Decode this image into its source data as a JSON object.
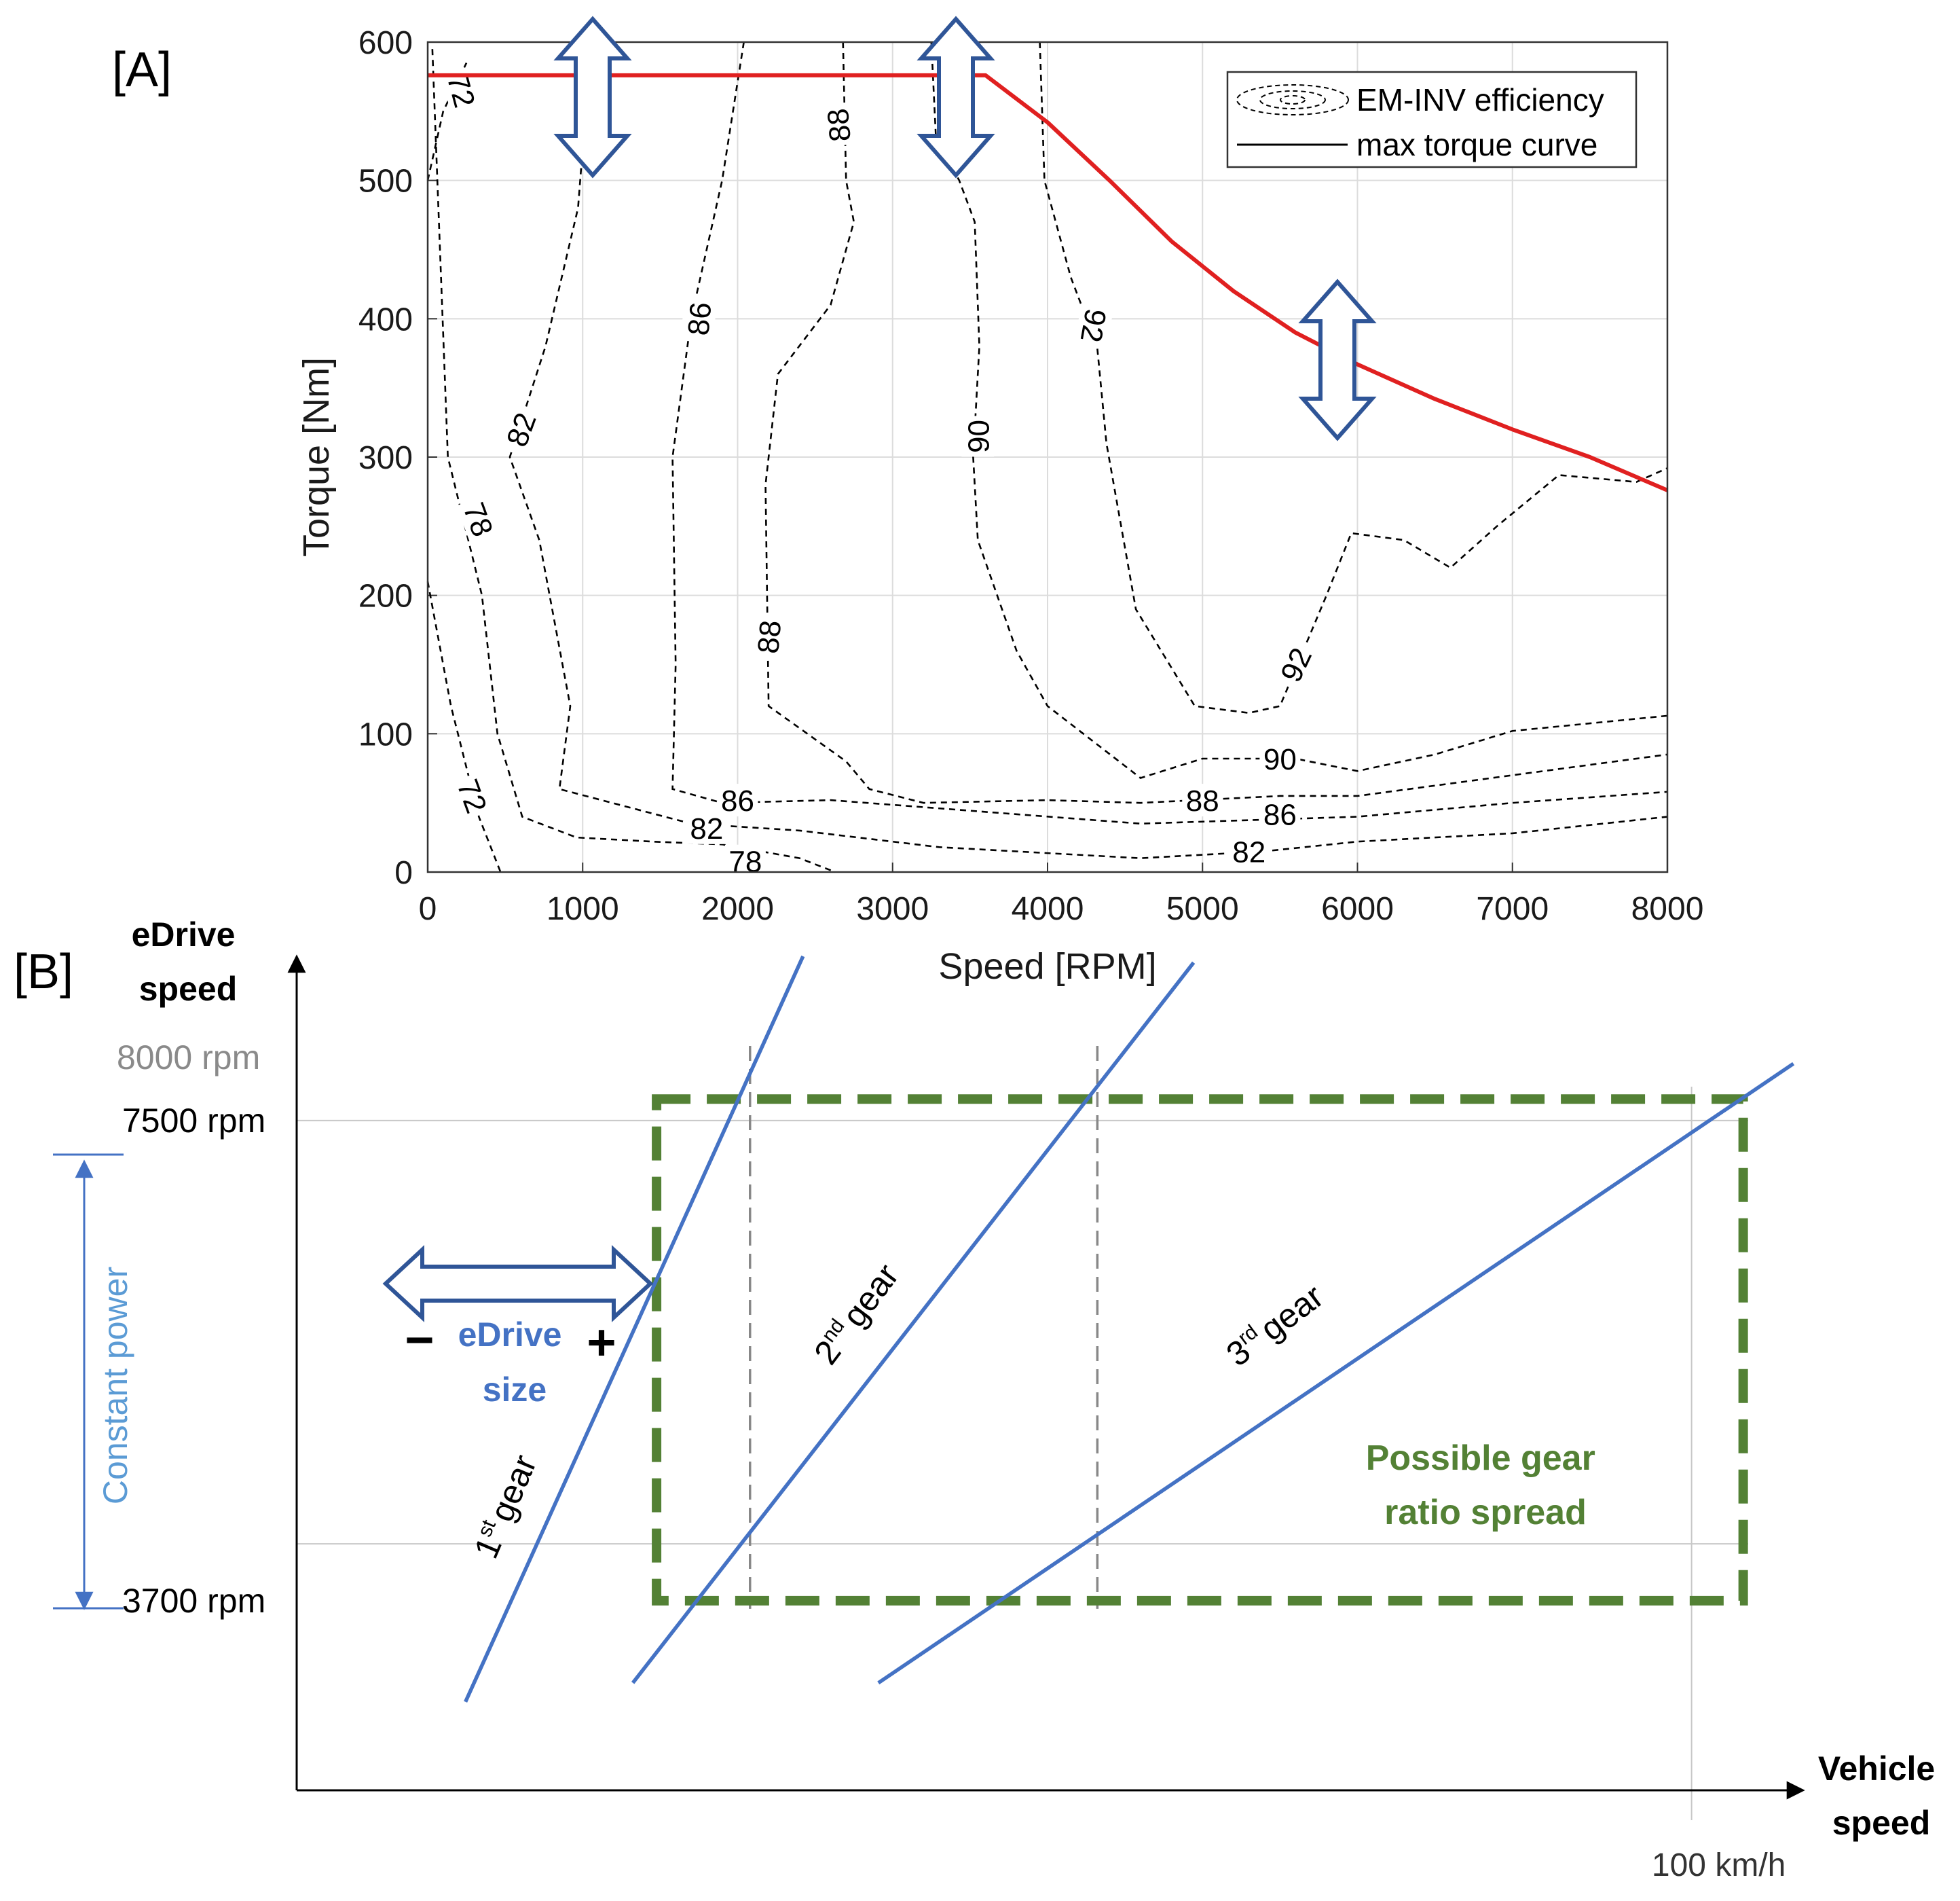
{
  "chart_data": [
    {
      "type": "line",
      "panel_label": "[A]",
      "xlabel": "Speed [RPM]",
      "ylabel": "Torque [Nm]",
      "xlim": [
        0,
        8000
      ],
      "ylim": [
        0,
        600
      ],
      "xticks": [
        "0",
        "1000",
        "2000",
        "3000",
        "4000",
        "5000",
        "6000",
        "7000",
        "8000"
      ],
      "yticks": [
        "0",
        "100",
        "200",
        "300",
        "400",
        "500",
        "600"
      ],
      "grid": true,
      "legend": {
        "placement": "top-right",
        "entries": [
          "EM-INV efficiency",
          "max torque curve"
        ]
      },
      "series": [
        {
          "name": "max torque curve",
          "color": "#e02020",
          "points": [
            [
              0,
              576
            ],
            [
              3600,
              576
            ],
            [
              4000,
              542
            ],
            [
              4400,
              500
            ],
            [
              4800,
              456
            ],
            [
              5200,
              420
            ],
            [
              5600,
              390
            ],
            [
              6000,
              367
            ],
            [
              6500,
              342
            ],
            [
              7000,
              320
            ],
            [
              7500,
              300
            ],
            [
              8000,
              276
            ]
          ]
        }
      ],
      "contours": [
        {
          "label": "72",
          "label_at": [
            220,
            565
          ],
          "label_angle": 75,
          "points": [
            [
              0,
              500
            ],
            [
              100,
              550
            ],
            [
              250,
              585
            ]
          ]
        },
        {
          "label": "72",
          "label_at": [
            290,
            55
          ],
          "label_angle": 70,
          "points": [
            [
              0,
              210
            ],
            [
              150,
              120
            ],
            [
              330,
              40
            ],
            [
              470,
              0
            ]
          ]
        },
        {
          "label": "78",
          "label_at": [
            330,
            255
          ],
          "label_angle": 70,
          "points": [
            [
              30,
              595
            ],
            [
              130,
              300
            ],
            [
              350,
              200
            ],
            [
              450,
              100
            ],
            [
              610,
              40
            ],
            [
              960,
              25
            ],
            [
              1450,
              22
            ],
            [
              1900,
              20
            ],
            [
              2400,
              10
            ],
            [
              2630,
              0
            ]
          ]
        },
        {
          "label": "78",
          "label_at": [
            2050,
            8
          ],
          "label_angle": 0,
          "points": []
        },
        {
          "label": "82",
          "label_at": [
            600,
            320
          ],
          "label_angle": -70,
          "points": [
            [
              1050,
              595
            ],
            [
              970,
              480
            ],
            [
              760,
              380
            ],
            [
              530,
              300
            ],
            [
              720,
              240
            ],
            [
              920,
              120
            ],
            [
              850,
              60
            ],
            [
              1700,
              35
            ],
            [
              2400,
              30
            ],
            [
              3300,
              18
            ],
            [
              4600,
              10
            ],
            [
              5400,
              15
            ],
            [
              6000,
              22
            ],
            [
              7000,
              28
            ],
            [
              8000,
              40
            ]
          ]
        },
        {
          "label": "82",
          "label_at": [
            5300,
            15
          ],
          "label_angle": 0,
          "points": []
        },
        {
          "label": "82",
          "label_at": [
            1800,
            32
          ],
          "label_angle": 0,
          "points": []
        },
        {
          "label": "86",
          "label_at": [
            1750,
            400
          ],
          "label_angle": -85,
          "points": [
            [
              2040,
              600
            ],
            [
              1900,
              500
            ],
            [
              1700,
              400
            ],
            [
              1580,
              300
            ],
            [
              1600,
              150
            ],
            [
              1580,
              60
            ],
            [
              1900,
              50
            ],
            [
              2600,
              52
            ],
            [
              4600,
              35
            ],
            [
              6000,
              40
            ],
            [
              7000,
              50
            ],
            [
              8000,
              58
            ]
          ]
        },
        {
          "label": "86",
          "label_at": [
            2000,
            52
          ],
          "label_angle": 0,
          "points": []
        },
        {
          "label": "86",
          "label_at": [
            5500,
            42
          ],
          "label_angle": 0,
          "points": []
        },
        {
          "label": "88",
          "label_at": [
            2650,
            540
          ],
          "label_angle": -95,
          "points": [
            [
              2680,
              600
            ],
            [
              2700,
              500
            ],
            [
              2750,
              470
            ],
            [
              2600,
              410
            ],
            [
              2260,
              360
            ],
            [
              2180,
              280
            ],
            [
              2200,
              120
            ],
            [
              2700,
              80
            ],
            [
              2850,
              60
            ],
            [
              3200,
              50
            ],
            [
              4000,
              52
            ],
            [
              4600,
              50
            ],
            [
              5500,
              55
            ],
            [
              6000,
              55
            ],
            [
              7000,
              70
            ],
            [
              8000,
              85
            ]
          ]
        },
        {
          "label": "88",
          "label_at": [
            2200,
            170
          ],
          "label_angle": -85,
          "points": []
        },
        {
          "label": "88",
          "label_at": [
            5000,
            52
          ],
          "label_angle": 0,
          "points": []
        },
        {
          "label": "90",
          "label_at": [
            3550,
            315
          ],
          "label_angle": -90,
          "points": [
            [
              3250,
              600
            ],
            [
              3280,
              530
            ],
            [
              3430,
              500
            ],
            [
              3530,
              470
            ],
            [
              3560,
              380
            ],
            [
              3520,
              300
            ],
            [
              3550,
              240
            ],
            [
              3800,
              160
            ],
            [
              4000,
              120
            ],
            [
              4600,
              68
            ],
            [
              5000,
              82
            ],
            [
              5600,
              82
            ],
            [
              6000,
              73
            ],
            [
              6500,
              85
            ],
            [
              7000,
              102
            ],
            [
              8000,
              113
            ]
          ]
        },
        {
          "label": "90",
          "label_at": [
            5500,
            82
          ],
          "label_angle": 0,
          "points": []
        },
        {
          "label": "92",
          "label_at": [
            4300,
            395
          ],
          "label_angle": 100,
          "points": [
            [
              3950,
              600
            ],
            [
              3980,
              500
            ],
            [
              4150,
              430
            ],
            [
              4320,
              380
            ],
            [
              4380,
              310
            ],
            [
              4570,
              190
            ],
            [
              4950,
              120
            ],
            [
              5300,
              115
            ],
            [
              5500,
              120
            ],
            [
              5800,
              200
            ],
            [
              5960,
              245
            ],
            [
              6300,
              240
            ],
            [
              6600,
              220
            ],
            [
              6900,
              250
            ],
            [
              7300,
              287
            ],
            [
              7800,
              282
            ],
            [
              8000,
              292
            ]
          ]
        },
        {
          "label": "92",
          "label_at": [
            5600,
            150
          ],
          "label_angle": -65,
          "points": []
        }
      ]
    },
    {
      "type": "line",
      "panel_label": "[B]",
      "ylabel": "eDrive speed",
      "xlabel": "Vehicle speed",
      "xlim": [
        0,
        1.08
      ],
      "ylim": [
        2200,
        8800
      ],
      "ytick_labels": {
        "8000": "8000 rpm",
        "7500": "7500 rpm",
        "3700": "3700 rpm"
      },
      "xtick_labels": {
        "1.0": "100 km/h"
      },
      "series": [
        {
          "name": "1st gear",
          "color": "#4472c4",
          "points": [
            [
              0.121,
              2900
            ],
            [
              0.363,
              8800
            ]
          ]
        },
        {
          "name": "2nd gear",
          "color": "#4472c4",
          "points": [
            [
              0.241,
              3050
            ],
            [
              0.643,
              8750
            ]
          ]
        },
        {
          "name": "3rd gear",
          "color": "#4472c4",
          "points": [
            [
              0.417,
              3050
            ],
            [
              1.073,
              7950
            ]
          ]
        }
      ],
      "gear_labels": {
        "first": {
          "num": "1",
          "sup": "st",
          "word": "gear"
        },
        "second": {
          "num": "2",
          "sup": "nd",
          "word": "gear"
        },
        "third": {
          "num": "3",
          "sup": "rd",
          "word": "gear"
        }
      },
      "annotations": {
        "spread_label": [
          "Possible gear",
          "ratio spread"
        ],
        "size_label": [
          "eDrive",
          "size"
        ],
        "minus": "−",
        "plus": "+",
        "constant_power": "Constant power",
        "spread_box": {
          "x": [
            0.258,
            1.037
          ],
          "y": [
            3700,
            7670
          ]
        },
        "vertical_dashes_x": [
          0.325,
          0.574
        ],
        "gridlines_y": [
          7500,
          4150
        ],
        "gridline_x": 1.0
      }
    }
  ],
  "colors": {
    "torque": "#e02020",
    "gear": "#4472c4",
    "spread": "#538135",
    "arrow": "#2f5597",
    "constant_power": "#5b9bd5",
    "grid": "#dcdcdc"
  }
}
